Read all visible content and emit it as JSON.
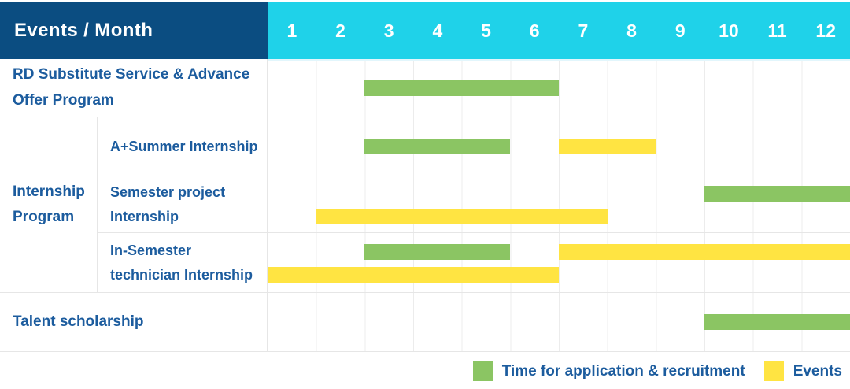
{
  "header": {
    "label": "Events / Month",
    "months": [
      "1",
      "2",
      "3",
      "4",
      "5",
      "6",
      "7",
      "8",
      "9",
      "10",
      "11",
      "12"
    ]
  },
  "colors": {
    "navy": "#0b4d81",
    "cyan": "#1fd2e9",
    "label_text": "#1c5c9e",
    "green": "#8bc563",
    "yellow": "#ffe442",
    "grid": "#ececec",
    "header_highlight": "#e2f6fc"
  },
  "chart_data": {
    "type": "gantt",
    "x_axis": {
      "label": "Month",
      "range": [
        1,
        12
      ]
    },
    "rows": [
      {
        "label": "RD Substitute Service & Advance Offer Program",
        "group": null,
        "lines": [
          [
            {
              "series": "application",
              "start": 3,
              "end": 6
            }
          ]
        ]
      },
      {
        "label": "A+Summer Internship",
        "group": "Internship Program",
        "lines": [
          [
            {
              "series": "application",
              "start": 3,
              "end": 5
            },
            {
              "series": "event",
              "start": 7,
              "end": 8
            }
          ]
        ]
      },
      {
        "label": "Semester project Internship",
        "group": "Internship Program",
        "lines": [
          [
            {
              "series": "application",
              "start": 10,
              "end": 12
            }
          ],
          [
            {
              "series": "event",
              "start": 2,
              "end": 7
            }
          ]
        ]
      },
      {
        "label": "In-Semester technician Internship",
        "group": "Internship Program",
        "lines": [
          [
            {
              "series": "application",
              "start": 3,
              "end": 5
            },
            {
              "series": "event",
              "start": 7,
              "end": 12
            }
          ],
          [
            {
              "series": "event",
              "start": 1,
              "end": 6
            }
          ]
        ]
      },
      {
        "label": "Talent scholarship",
        "group": null,
        "lines": [
          [
            {
              "series": "application",
              "start": 10,
              "end": 12
            }
          ]
        ]
      }
    ],
    "legend": [
      {
        "series": "application",
        "label": "Time for application & recruitment",
        "color": "#8bc563"
      },
      {
        "series": "event",
        "label": "Events",
        "color": "#ffe442"
      }
    ],
    "legend_position": "bottom-right"
  }
}
